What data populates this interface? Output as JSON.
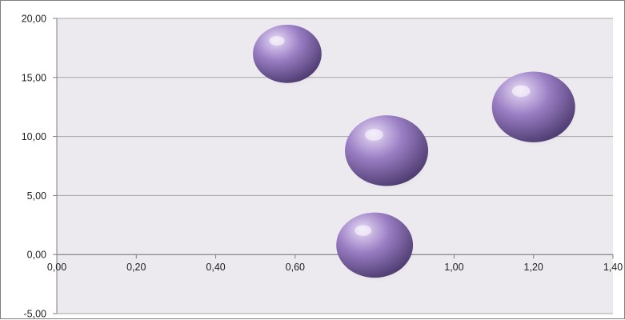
{
  "chart_data": {
    "type": "scatter",
    "variant": "bubble",
    "title": "",
    "xlabel": "",
    "ylabel": "",
    "xlim": [
      0,
      1.4
    ],
    "ylim": [
      -5,
      20
    ],
    "x_ticks": [
      "0,00",
      "0,20",
      "0,40",
      "0,60",
      "0,80",
      "1,00",
      "1,20",
      "1,40"
    ],
    "x_tick_values": [
      0,
      0.2,
      0.4,
      0.6,
      0.8,
      1.0,
      1.2,
      1.4
    ],
    "y_ticks": [
      "-5,00",
      "0,00",
      "5,00",
      "10,00",
      "15,00",
      "20,00"
    ],
    "y_tick_values": [
      -5,
      0,
      5,
      10,
      15,
      20
    ],
    "grid": "horizontal",
    "legend": "none",
    "colors": {
      "plot_background": "#ece9ef",
      "gridline": "#a6a6a6",
      "bubble_light": "#e9dcf6",
      "bubble_mid": "#9a7ec4",
      "bubble_dark": "#4c3a6e"
    },
    "series": [
      {
        "points": [
          {
            "x": 0.58,
            "y": 17.0,
            "size": 0.68
          },
          {
            "x": 0.83,
            "y": 8.8,
            "size": 1.0
          },
          {
            "x": 1.2,
            "y": 12.5,
            "size": 1.0
          },
          {
            "x": 0.8,
            "y": 0.8,
            "size": 0.85
          }
        ]
      }
    ]
  }
}
